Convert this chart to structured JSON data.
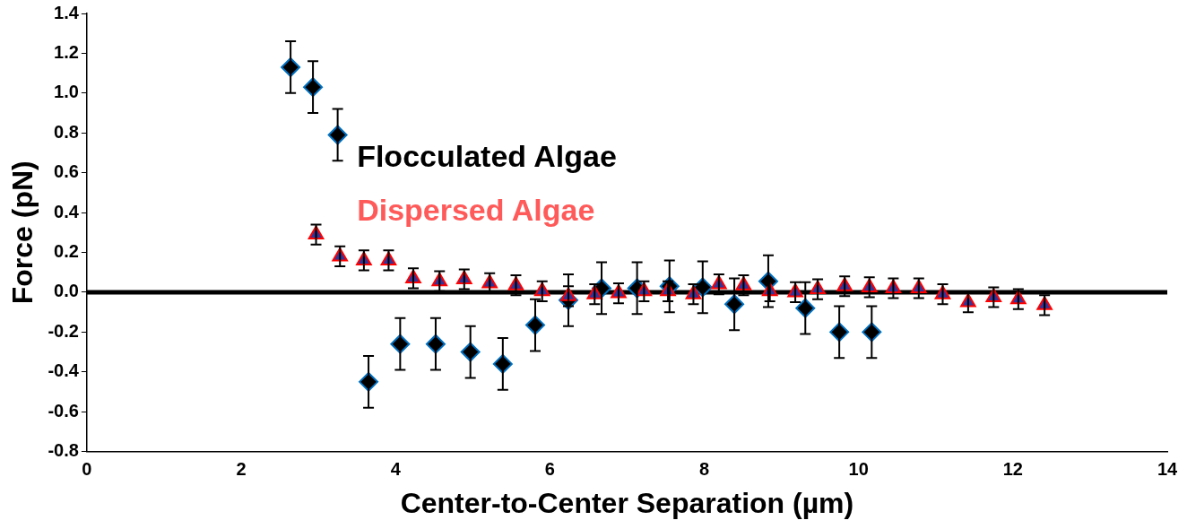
{
  "chart_data": {
    "type": "scatter",
    "xlabel": "Center-to-Center Separation (µm)",
    "ylabel": "Force (pN)",
    "xlim": [
      0,
      14
    ],
    "xticks": [
      0,
      2,
      4,
      6,
      8,
      10,
      12,
      14
    ],
    "ylim": [
      -0.8,
      1.4
    ],
    "yticks": [
      {
        "value": -0.8,
        "label": "-0.8"
      },
      {
        "value": -0.6,
        "label": "-0.6"
      },
      {
        "value": -0.4,
        "label": "-0.4"
      },
      {
        "value": -0.2,
        "label": "-0.2"
      },
      {
        "value": 0,
        "label": "0.0"
      },
      {
        "value": 0.2,
        "label": "0.2"
      },
      {
        "value": 0.4,
        "label": "0.4"
      },
      {
        "value": 0.6,
        "label": "0.6"
      },
      {
        "value": 0.8,
        "label": "0.8"
      },
      {
        "value": 1,
        "label": "1.0"
      },
      {
        "value": 1.2,
        "label": "1.2"
      },
      {
        "value": 1.4,
        "label": "1.4"
      }
    ],
    "grid": false,
    "legend": "top left",
    "ref_lines": [
      {
        "axis": "y",
        "value": 0,
        "color": "#000000"
      }
    ],
    "series": [
      {
        "name": "Flocculated Algae",
        "color": "#000000",
        "marker": "diamond",
        "x": [
          2.64,
          2.93,
          3.25,
          3.65,
          4.06,
          4.52,
          4.97,
          5.39,
          5.81,
          6.24,
          6.67,
          7.13,
          7.55,
          7.98,
          8.39,
          8.83,
          9.31,
          9.75,
          10.17
        ],
        "values": [
          1.13,
          1.03,
          0.79,
          -0.45,
          -0.26,
          -0.26,
          -0.3,
          -0.36,
          -0.165,
          -0.04,
          0.02,
          0.02,
          0.03,
          0.025,
          -0.06,
          0.055,
          -0.08,
          -0.2,
          -0.2
        ],
        "errors": [
          0.13,
          0.13,
          0.13,
          0.13,
          0.13,
          0.13,
          0.13,
          0.13,
          0.13,
          0.13,
          0.13,
          0.13,
          0.13,
          0.13,
          0.13,
          0.13,
          0.13,
          0.13,
          0.13
        ]
      },
      {
        "name": "Dispersed Algae",
        "color": "#333399",
        "marker": "triangle",
        "x": [
          2.97,
          3.28,
          3.59,
          3.91,
          4.23,
          4.57,
          4.89,
          5.22,
          5.56,
          5.9,
          6.24,
          6.58,
          6.89,
          7.22,
          7.53,
          7.86,
          8.19,
          8.51,
          8.85,
          9.18,
          9.47,
          9.82,
          10.14,
          10.45,
          10.78,
          11.09,
          11.42,
          11.75,
          12.07,
          12.41
        ],
        "values": [
          0.29,
          0.18,
          0.16,
          0.16,
          0.07,
          0.055,
          0.065,
          0.045,
          0.035,
          0.005,
          -0.02,
          -0.01,
          -0.005,
          0.005,
          0.005,
          -0.01,
          0.04,
          0.035,
          0.005,
          0,
          0.015,
          0.03,
          0.025,
          0.02,
          0.02,
          -0.01,
          -0.05,
          -0.025,
          -0.035,
          -0.065
        ],
        "errors": [
          0.05,
          0.05,
          0.05,
          0.05,
          0.05,
          0.05,
          0.05,
          0.05,
          0.05,
          0.05,
          0.05,
          0.05,
          0.05,
          0.05,
          0.05,
          0.05,
          0.05,
          0.05,
          0.05,
          0.05,
          0.05,
          0.05,
          0.05,
          0.05,
          0.05,
          0.05,
          0.05,
          0.05,
          0.05,
          0.05
        ]
      }
    ]
  }
}
